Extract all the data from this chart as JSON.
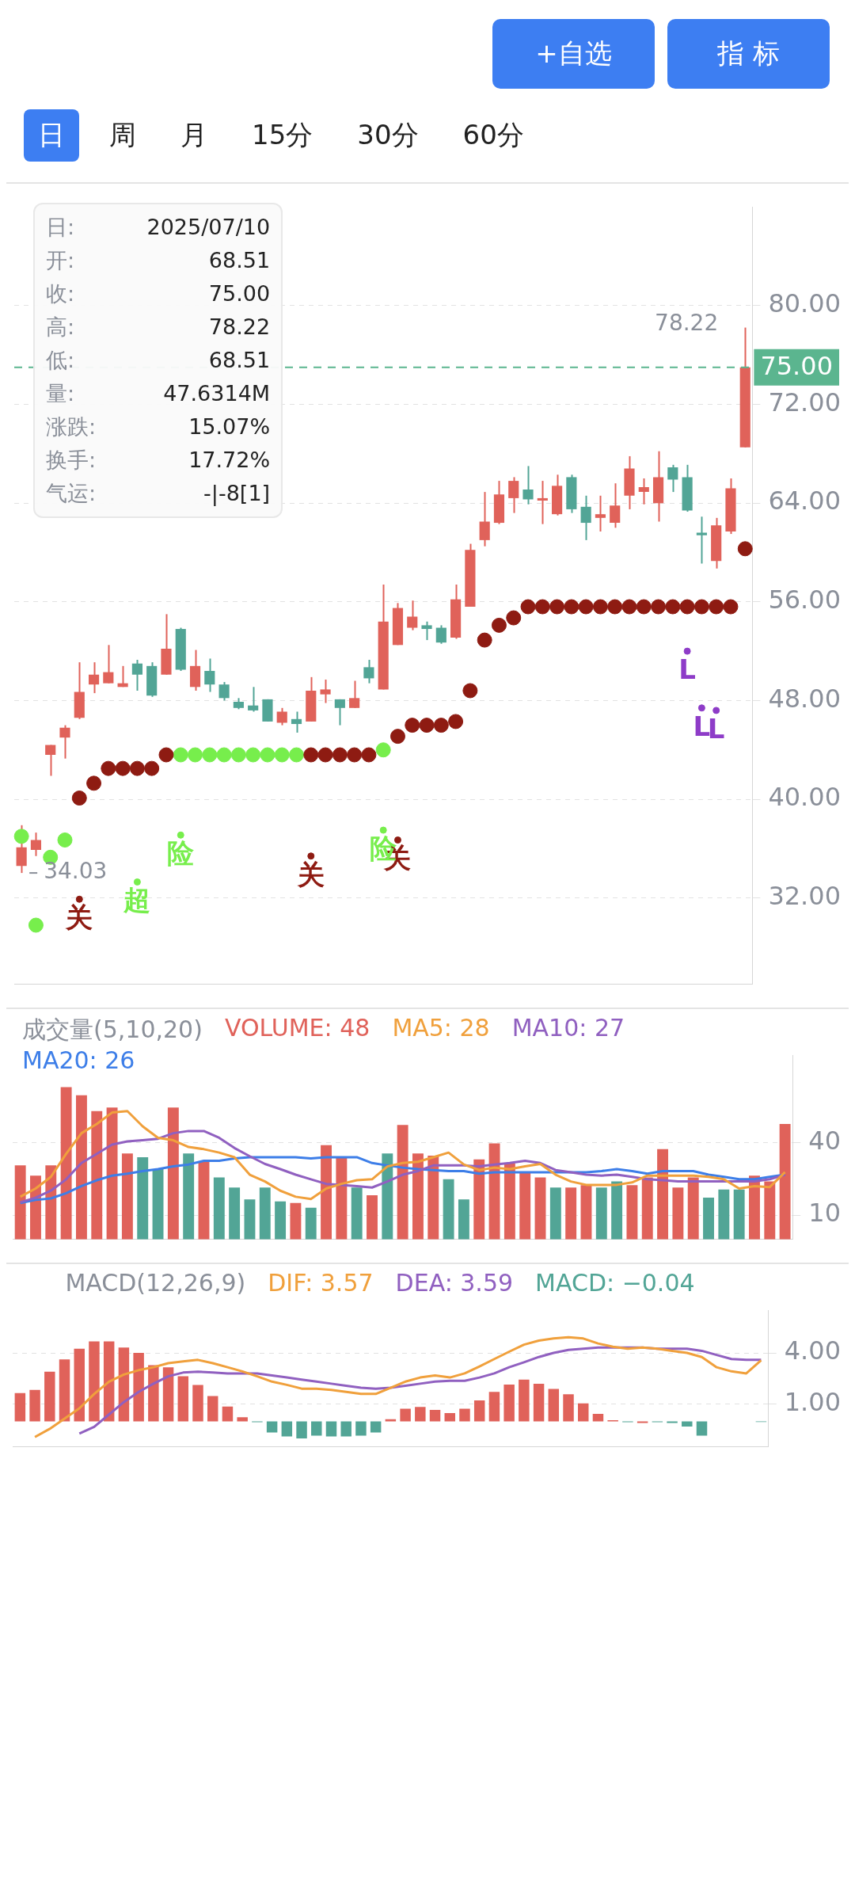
{
  "chart_data": [
    {
      "type": "other",
      "annotations": [
        "+自选",
        "指 标",
        "日",
        "周",
        "月",
        "15分",
        "30分",
        "60分"
      ]
    },
    {
      "type": "candlestick",
      "categories": [
        null,
        null,
        null,
        null,
        null,
        null,
        null,
        null,
        null,
        null,
        null,
        null,
        null,
        null,
        null,
        null,
        null,
        null,
        null,
        null,
        null,
        null,
        null,
        null,
        null,
        null,
        null,
        null,
        null,
        null,
        null,
        null,
        null,
        null,
        null,
        null,
        null,
        null,
        null,
        null,
        null,
        null,
        null,
        null,
        null,
        null,
        null,
        null,
        null,
        null,
        null
      ],
      "ohlc": [
        [
          34.6,
          37.9,
          34.03,
          36.1
        ],
        [
          35.9,
          37.3,
          35.4,
          36.7
        ],
        [
          43.6,
          44.4,
          41.9,
          44.4
        ],
        [
          45.0,
          46.0,
          43.3,
          45.8
        ],
        [
          46.6,
          51.1,
          46.5,
          48.7
        ],
        [
          49.3,
          51.1,
          48.6,
          50.1
        ],
        [
          49.4,
          52.5,
          49.4,
          50.3
        ],
        [
          49.1,
          50.8,
          49.1,
          49.4
        ],
        [
          51.0,
          51.3,
          48.8,
          50.1
        ],
        [
          50.8,
          51.1,
          48.3,
          48.4
        ],
        [
          50.1,
          55.0,
          50.1,
          52.2
        ],
        [
          53.8,
          53.9,
          50.4,
          50.5
        ],
        [
          49.1,
          52.1,
          48.8,
          50.8
        ],
        [
          50.4,
          51.4,
          48.7,
          49.3
        ],
        [
          49.3,
          49.5,
          48.0,
          48.2
        ],
        [
          47.9,
          48.2,
          47.3,
          47.4
        ],
        [
          47.6,
          49.1,
          47.1,
          47.2
        ],
        [
          48.1,
          48.1,
          46.3,
          46.3
        ],
        [
          46.2,
          47.4,
          46.0,
          47.1
        ],
        [
          46.5,
          47.1,
          45.4,
          46.1
        ],
        [
          46.3,
          49.9,
          46.3,
          48.8
        ],
        [
          48.5,
          49.7,
          47.8,
          48.9
        ],
        [
          48.1,
          48.1,
          46.0,
          47.4
        ],
        [
          47.4,
          49.6,
          47.4,
          48.2
        ],
        [
          50.7,
          51.3,
          49.4,
          49.8
        ],
        [
          48.9,
          57.4,
          48.9,
          54.4
        ],
        [
          52.5,
          55.9,
          52.5,
          55.5
        ],
        [
          53.9,
          56.1,
          53.7,
          54.8
        ],
        [
          54.1,
          54.4,
          52.9,
          53.8
        ],
        [
          53.9,
          54.1,
          52.6,
          52.7
        ],
        [
          53.1,
          57.4,
          53.0,
          56.2
        ],
        [
          55.6,
          60.7,
          55.6,
          60.2
        ],
        [
          61.0,
          64.9,
          60.5,
          62.5
        ],
        [
          62.4,
          65.8,
          62.3,
          64.7
        ],
        [
          64.4,
          66.1,
          63.2,
          65.8
        ],
        [
          65.1,
          67.0,
          63.9,
          64.3
        ],
        [
          64.2,
          65.8,
          62.3,
          64.4
        ],
        [
          63.1,
          66.3,
          63.0,
          65.4
        ],
        [
          66.1,
          66.3,
          63.2,
          63.5
        ],
        [
          63.7,
          64.6,
          61.0,
          62.4
        ],
        [
          62.8,
          64.6,
          61.7,
          63.1
        ],
        [
          62.4,
          65.6,
          62.0,
          63.8
        ],
        [
          64.6,
          67.8,
          63.5,
          66.8
        ],
        [
          64.9,
          66.0,
          63.9,
          65.3
        ],
        [
          64.0,
          68.2,
          62.5,
          66.1
        ],
        [
          66.9,
          67.1,
          64.9,
          65.9
        ],
        [
          66.1,
          67.1,
          63.3,
          63.4
        ],
        [
          61.6,
          62.9,
          59.1,
          61.4
        ],
        [
          59.3,
          62.8,
          58.7,
          62.2
        ],
        [
          61.7,
          66.0,
          61.5,
          65.2
        ],
        [
          68.51,
          78.22,
          68.51,
          75.0
        ]
      ],
      "colors": [
        "#e0625a",
        "#e0625a",
        "#e0625a",
        "#e0625a",
        "#e0625a",
        "#e0625a",
        "#e0625a",
        "#e0625a",
        "#52a596",
        "#52a596",
        "#e0625a",
        "#52a596",
        "#e0625a",
        "#52a596",
        "#52a596",
        "#52a596",
        "#52a596",
        "#52a596",
        "#e0625a",
        "#52a596",
        "#e0625a",
        "#e0625a",
        "#52a596",
        "#e0625a",
        "#52a596",
        "#e0625a",
        "#e0625a",
        "#e0625a",
        "#52a596",
        "#52a596",
        "#e0625a",
        "#e0625a",
        "#e0625a",
        "#e0625a",
        "#e0625a",
        "#52a596",
        "#e0625a",
        "#e0625a",
        "#52a596",
        "#52a596",
        "#e0625a",
        "#e0625a",
        "#e0625a",
        "#e0625a",
        "#e0625a",
        "#52a596",
        "#52a596",
        "#52a596",
        "#e0625a",
        "#e0625a",
        "#e0625a"
      ],
      "series": [
        {
          "type": "scatter",
          "marker": "circle",
          "color": "#8e1b12",
          "values": [
            null,
            null,
            null,
            null,
            40.1,
            41.3,
            42.5,
            42.5,
            42.5,
            42.5,
            43.6,
            null,
            null,
            null,
            null,
            null,
            null,
            null,
            null,
            null,
            43.6,
            43.6,
            43.6,
            43.6,
            43.6,
            null,
            45.1,
            46.0,
            46.0,
            46.0,
            46.3,
            48.8,
            52.9,
            54.1,
            54.7,
            55.6,
            55.6,
            55.6,
            55.6,
            55.6,
            55.6,
            55.6,
            55.6,
            55.6,
            55.6,
            55.6,
            55.6,
            55.6,
            55.6,
            55.6,
            60.3
          ]
        },
        {
          "type": "scatter",
          "marker": "circle",
          "color": "#77ee4c",
          "values": [
            37.0,
            29.8,
            35.3,
            36.7,
            null,
            null,
            null,
            null,
            null,
            null,
            null,
            43.6,
            43.6,
            43.6,
            43.6,
            43.6,
            43.6,
            43.6,
            43.6,
            43.6,
            null,
            null,
            null,
            null,
            null,
            44.0,
            null,
            null,
            null,
            null,
            null,
            null,
            null,
            null,
            null,
            null,
            null,
            null,
            null,
            null,
            null,
            null,
            null,
            null,
            null,
            null,
            null,
            null,
            null,
            null,
            null
          ]
        },
        {
          "name": "关",
          "type": "scatter",
          "marker": "circle",
          "color": "#8e1b12",
          "values": [
            null,
            null,
            null,
            null,
            31.9,
            null,
            null,
            null,
            null,
            null,
            null,
            null,
            null,
            null,
            null,
            null,
            null,
            null,
            null,
            null,
            35.4,
            null,
            null,
            null,
            null,
            null,
            36.7,
            null,
            null,
            null,
            null,
            null,
            null,
            null,
            null,
            null,
            null,
            null,
            null,
            null,
            null,
            null,
            null,
            null,
            null,
            null,
            null,
            null,
            null,
            null,
            null
          ]
        },
        {
          "name": "超",
          "type": "scatter",
          "marker": "circle",
          "color": "#77ee4c",
          "values": [
            null,
            null,
            null,
            null,
            null,
            null,
            null,
            null,
            33.3,
            null,
            null,
            null,
            null,
            null,
            null,
            null,
            null,
            null,
            null,
            null,
            null,
            null,
            null,
            null,
            null,
            null,
            null,
            null,
            null,
            null,
            null,
            null,
            null,
            null,
            null,
            null,
            null,
            null,
            null,
            null,
            null,
            null,
            null,
            null,
            null,
            null,
            null,
            null,
            null,
            null,
            null
          ]
        },
        {
          "name": "险",
          "type": "scatter",
          "marker": "circle",
          "color": "#77ee4c",
          "values": [
            null,
            null,
            null,
            null,
            null,
            null,
            null,
            null,
            null,
            null,
            null,
            37.1,
            null,
            null,
            null,
            null,
            null,
            null,
            null,
            null,
            null,
            null,
            null,
            null,
            null,
            37.5,
            null,
            null,
            null,
            null,
            null,
            null,
            null,
            null,
            null,
            null,
            null,
            null,
            null,
            null,
            null,
            null,
            null,
            null,
            null,
            null,
            null,
            null,
            null,
            null,
            null
          ]
        },
        {
          "name": "L",
          "type": "scatter",
          "marker": "circle",
          "color": "#8e3cc8",
          "values": [
            null,
            null,
            null,
            null,
            null,
            null,
            null,
            null,
            null,
            null,
            null,
            null,
            null,
            null,
            null,
            null,
            null,
            null,
            null,
            null,
            null,
            null,
            null,
            null,
            null,
            null,
            null,
            null,
            null,
            null,
            null,
            null,
            null,
            null,
            null,
            null,
            null,
            null,
            null,
            null,
            null,
            null,
            null,
            null,
            null,
            null,
            52.0,
            47.4,
            47.2,
            null,
            null
          ]
        }
      ],
      "ylim": [
        25,
        88
      ],
      "yticks": [
        {
          "value": 32,
          "label": "32.00"
        },
        {
          "value": 40,
          "label": "40.00"
        },
        {
          "value": 48,
          "label": "48.00"
        },
        {
          "value": 56,
          "label": "56.00"
        },
        {
          "value": 64,
          "label": "64.00"
        },
        {
          "value": 72,
          "label": "72.00"
        },
        {
          "value": 80,
          "label": "80.00"
        }
      ],
      "grid": "y",
      "tick_labels": "y",
      "ref_lines": [
        {
          "axis": "y",
          "value": 75,
          "label": "75.00",
          "color": "#5bb58f",
          "line_style": "dashed"
        }
      ],
      "annotations": [
        "78.22",
        "34.03",
        "日:",
        "2025/07/10",
        "开:",
        "68.51",
        "收:",
        "75.00",
        "高:",
        "78.22",
        "低:",
        "68.51",
        "量:",
        "47.6314M",
        "涨跌:",
        "15.07%",
        "换手:",
        "17.72%",
        "气运:",
        "-|-8[1]"
      ]
    },
    {
      "type": "bar",
      "title": "成交量(5,10,20)",
      "legend": "top left",
      "marker": "none",
      "categories": [
        null,
        null,
        null,
        null,
        null,
        null,
        null,
        null,
        null,
        null,
        null,
        null,
        null,
        null,
        null,
        null,
        null,
        null,
        null,
        null,
        null,
        null,
        null,
        null,
        null,
        null,
        null,
        null,
        null,
        null,
        null,
        null,
        null,
        null,
        null,
        null,
        null,
        null,
        null,
        null,
        null,
        null,
        null,
        null,
        null,
        null,
        null,
        null,
        null,
        null,
        null
      ],
      "series": [
        {
          "name": "VOLUME: 48",
          "color": "#e0625a",
          "colors": [
            "#e0625a",
            "#e0625a",
            "#e0625a",
            "#e0625a",
            "#e0625a",
            "#e0625a",
            "#e0625a",
            "#e0625a",
            "#52a596",
            "#52a596",
            "#e0625a",
            "#52a596",
            "#e0625a",
            "#52a596",
            "#52a596",
            "#52a596",
            "#52a596",
            "#52a596",
            "#e0625a",
            "#52a596",
            "#e0625a",
            "#e0625a",
            "#52a596",
            "#e0625a",
            "#52a596",
            "#e0625a",
            "#e0625a",
            "#e0625a",
            "#52a596",
            "#52a596",
            "#e0625a",
            "#e0625a",
            "#e0625a",
            "#e0625a",
            "#e0625a",
            "#52a596",
            "#e0625a",
            "#e0625a",
            "#52a596",
            "#52a596",
            "#e0625a",
            "#e0625a",
            "#e0625a",
            "#e0625a",
            "#e0625a",
            "#52a596",
            "#52a596",
            "#52a596",
            "#e0625a",
            "#e0625a",
            "#e0625a"
          ],
          "values": [
            30.5,
            26.3,
            30.5,
            62.8,
            59.4,
            52.9,
            54.4,
            35.4,
            33.9,
            29.0,
            54.4,
            35.4,
            32.0,
            25.6,
            21.4,
            16.5,
            21.4,
            15.7,
            15.0,
            13.1,
            38.9,
            33.9,
            21.4,
            18.2,
            35.4,
            47.2,
            35.4,
            34.5,
            24.8,
            16.5,
            33.0,
            39.6,
            31.3,
            27.7,
            25.6,
            21.4,
            21.4,
            22.4,
            21.4,
            23.9,
            22.4,
            25.6,
            37.2,
            21.4,
            25.6,
            17.2,
            20.6,
            20.6,
            26.3,
            23.9,
            47.6
          ]
        },
        {
          "name": "MA5: 28",
          "type": "line",
          "color": "#f0a03c",
          "values": [
            17.6,
            21.0,
            25.8,
            35.3,
            43.8,
            47.6,
            52.3,
            52.9,
            46.6,
            41.9,
            40.9,
            38.1,
            37.2,
            35.8,
            33.9,
            26.7,
            23.9,
            20.1,
            17.6,
            16.7,
            21.0,
            22.9,
            24.4,
            24.8,
            30.1,
            31.5,
            32.0,
            33.9,
            35.8,
            30.9,
            28.6,
            29.6,
            29.0,
            30.1,
            31.1,
            26.7,
            23.9,
            22.5,
            22.5,
            22.5,
            23.5,
            26.3,
            26.3,
            26.3,
            26.3,
            25.8,
            24.8,
            21.0,
            22.0,
            21.6,
            27.7
          ]
        },
        {
          "name": "MA10: 27",
          "type": "line",
          "color": "#9060c0",
          "values": [
            15.3,
            17.2,
            20.1,
            24.8,
            31.5,
            35.3,
            39.1,
            40.4,
            40.9,
            41.5,
            43.8,
            44.7,
            44.7,
            41.9,
            37.7,
            34.3,
            31.1,
            29.0,
            26.7,
            24.8,
            22.9,
            22.5,
            22.0,
            21.4,
            23.9,
            26.7,
            28.2,
            30.5,
            30.5,
            30.5,
            30.1,
            30.9,
            31.5,
            32.4,
            31.5,
            28.6,
            27.7,
            26.7,
            26.3,
            26.7,
            25.8,
            24.8,
            24.4,
            23.9,
            23.9,
            23.9,
            23.9,
            23.9,
            23.9,
            24.8,
            26.7
          ]
        },
        {
          "name": "MA20: 26",
          "type": "line",
          "color": "#3d7ee8",
          "values": [
            15.0,
            16.3,
            16.9,
            19.1,
            22.0,
            24.4,
            26.3,
            27.1,
            28.2,
            29.0,
            30.1,
            30.9,
            32.4,
            32.4,
            33.4,
            33.9,
            33.9,
            33.9,
            33.9,
            33.4,
            33.9,
            33.9,
            33.9,
            31.5,
            30.5,
            29.6,
            29.0,
            28.6,
            28.2,
            28.2,
            27.1,
            27.7,
            27.7,
            27.7,
            27.7,
            27.7,
            27.7,
            27.7,
            28.2,
            29.0,
            28.2,
            27.1,
            28.2,
            28.2,
            28.2,
            26.7,
            25.8,
            24.8,
            24.8,
            25.8,
            26.7
          ]
        }
      ],
      "ylim": [
        0,
        76
      ],
      "yticks": [
        10,
        40
      ],
      "grid": "y",
      "tick_labels": "y"
    },
    {
      "type": "bar",
      "title": "MACD(12,26,9)",
      "legend": "top",
      "marker": "none",
      "categories": [
        null,
        null,
        null,
        null,
        null,
        null,
        null,
        null,
        null,
        null,
        null,
        null,
        null,
        null,
        null,
        null,
        null,
        null,
        null,
        null,
        null,
        null,
        null,
        null,
        null,
        null,
        null,
        null,
        null,
        null,
        null,
        null,
        null,
        null,
        null,
        null,
        null,
        null,
        null,
        null,
        null,
        null,
        null,
        null,
        null,
        null,
        null,
        null,
        null,
        null,
        null
      ],
      "series": [
        {
          "name": "DIF: 3.57",
          "type": "line",
          "color": "#f0a03c",
          "values": [
            null,
            -0.92,
            -0.44,
            0.16,
            0.76,
            1.6,
            2.32,
            2.73,
            2.99,
            3.16,
            3.4,
            3.5,
            3.59,
            3.4,
            3.16,
            2.92,
            2.63,
            2.32,
            2.13,
            1.91,
            1.91,
            1.84,
            1.72,
            1.6,
            1.6,
            1.96,
            2.32,
            2.56,
            2.68,
            2.56,
            2.8,
            3.21,
            3.64,
            4.07,
            4.48,
            4.72,
            4.84,
            4.91,
            4.84,
            4.55,
            4.36,
            4.24,
            4.31,
            4.24,
            4.12,
            4.0,
            3.76,
            3.16,
            2.92,
            2.8,
            3.57
          ]
        },
        {
          "name": "DEA: 3.59",
          "type": "line",
          "color": "#9060c0",
          "values": [
            null,
            null,
            null,
            null,
            -0.72,
            -0.32,
            0.4,
            1.12,
            1.72,
            2.2,
            2.63,
            2.85,
            2.9,
            2.85,
            2.8,
            2.8,
            2.8,
            2.68,
            2.56,
            2.44,
            2.32,
            2.2,
            2.08,
            1.96,
            1.91,
            1.96,
            2.08,
            2.2,
            2.32,
            2.37,
            2.37,
            2.56,
            2.8,
            3.16,
            3.45,
            3.76,
            4.0,
            4.17,
            4.24,
            4.31,
            4.31,
            4.31,
            4.31,
            4.24,
            4.24,
            4.24,
            4.12,
            3.88,
            3.64,
            3.59,
            3.59
          ]
        },
        {
          "name": "MACD: −0.04",
          "color": "#52a596",
          "colors": [
            "#e0625a",
            "#e0625a",
            "#e0625a",
            "#e0625a",
            "#e0625a",
            "#e0625a",
            "#e0625a",
            "#e0625a",
            "#e0625a",
            "#e0625a",
            "#e0625a",
            "#e0625a",
            "#e0625a",
            "#e0625a",
            "#e0625a",
            "#e0625a",
            "#52a596",
            "#52a596",
            "#52a596",
            "#52a596",
            "#52a596",
            "#52a596",
            "#52a596",
            "#52a596",
            "#52a596",
            "#e0625a",
            "#e0625a",
            "#e0625a",
            "#e0625a",
            "#e0625a",
            "#e0625a",
            "#e0625a",
            "#e0625a",
            "#e0625a",
            "#e0625a",
            "#e0625a",
            "#e0625a",
            "#e0625a",
            "#e0625a",
            "#e0625a",
            "#e0625a",
            "#52a596",
            "#e0625a",
            "#52a596",
            "#52a596",
            "#52a596",
            "#52a596",
            "#52a596",
            "#52a596",
            "#52a596",
            "#52a596"
          ],
          "values": [
            1.65,
            1.84,
            2.9,
            3.62,
            4.24,
            4.67,
            4.67,
            4.31,
            4.0,
            3.28,
            3.16,
            2.63,
            2.13,
            1.48,
            0.86,
            0.24,
            -0.05,
            -0.65,
            -0.89,
            -1.0,
            -0.84,
            -0.89,
            -0.89,
            -0.84,
            -0.65,
            0.12,
            0.74,
            0.84,
            0.67,
            0.48,
            0.74,
            1.22,
            1.72,
            2.15,
            2.44,
            2.2,
            1.89,
            1.58,
            1.05,
            0.43,
            0.07,
            -0.05,
            -0.1,
            -0.05,
            -0.1,
            -0.3,
            -0.84,
            null,
            null,
            null,
            -0.04
          ]
        }
      ],
      "ylim": [
        -1.5,
        6.5
      ],
      "yticks": [
        {
          "value": 1,
          "label": "1.00"
        },
        {
          "value": 4,
          "label": "4.00"
        }
      ],
      "grid": "y",
      "tick_labels": "y"
    }
  ]
}
